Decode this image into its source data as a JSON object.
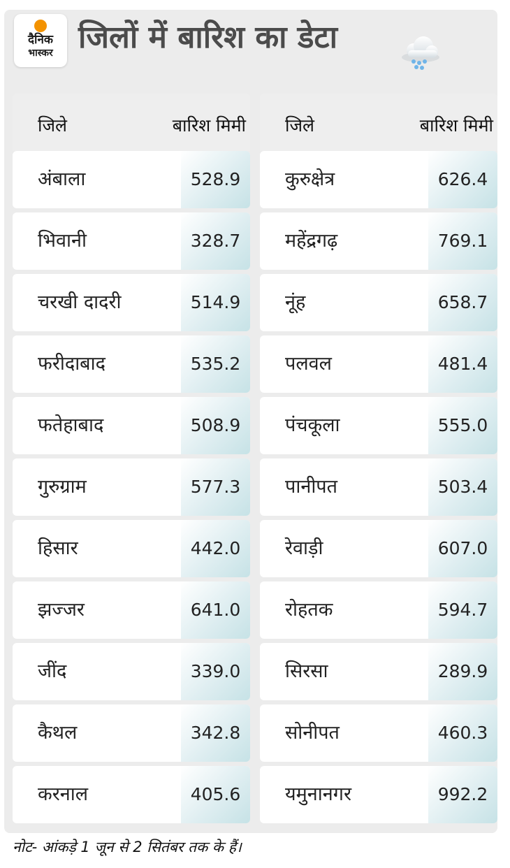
{
  "header": {
    "logo_line1": "दैनिक",
    "logo_line2": "भास्कर",
    "title": "जिलों में बारिश का डेटा",
    "icon": "rain-cloud-icon"
  },
  "table": {
    "col_district": "जिले",
    "col_rain": "बारिश मिमी",
    "left": [
      {
        "district": "अंबाला",
        "rain": "528.9"
      },
      {
        "district": "भिवानी",
        "rain": "328.7"
      },
      {
        "district": "चरखी दादरी",
        "rain": "514.9"
      },
      {
        "district": "फरीदाबाद",
        "rain": "535.2"
      },
      {
        "district": "फतेहाबाद",
        "rain": "508.9"
      },
      {
        "district": "गुरुग्राम",
        "rain": "577.3"
      },
      {
        "district": "हिसार",
        "rain": "442.0"
      },
      {
        "district": "झज्जर",
        "rain": "641.0"
      },
      {
        "district": "जींद",
        "rain": "339.0"
      },
      {
        "district": "कैथल",
        "rain": "342.8"
      },
      {
        "district": "करनाल",
        "rain": "405.6"
      }
    ],
    "right": [
      {
        "district": "कुरुक्षेत्र",
        "rain": "626.4"
      },
      {
        "district": "महेंद्रगढ़",
        "rain": "769.1"
      },
      {
        "district": "नूंह",
        "rain": "658.7"
      },
      {
        "district": "पलवल",
        "rain": "481.4"
      },
      {
        "district": "पंचकूला",
        "rain": "555.0"
      },
      {
        "district": "पानीपत",
        "rain": "503.4"
      },
      {
        "district": "रेवाड़ी",
        "rain": "607.0"
      },
      {
        "district": "रोहतक",
        "rain": "594.7"
      },
      {
        "district": "सिरसा",
        "rain": "289.9"
      },
      {
        "district": "सोनीपत",
        "rain": "460.3"
      },
      {
        "district": "यमुनानगर",
        "rain": "992.2"
      }
    ]
  },
  "footer": {
    "note": "नोट- आंकड़े 1 जून से 2 सितंबर तक के हैं।"
  },
  "colors": {
    "title": "#4b4b4b",
    "logo_dot": "#f39200",
    "value_tint": "#c6e2e6",
    "background": "#ececec"
  }
}
